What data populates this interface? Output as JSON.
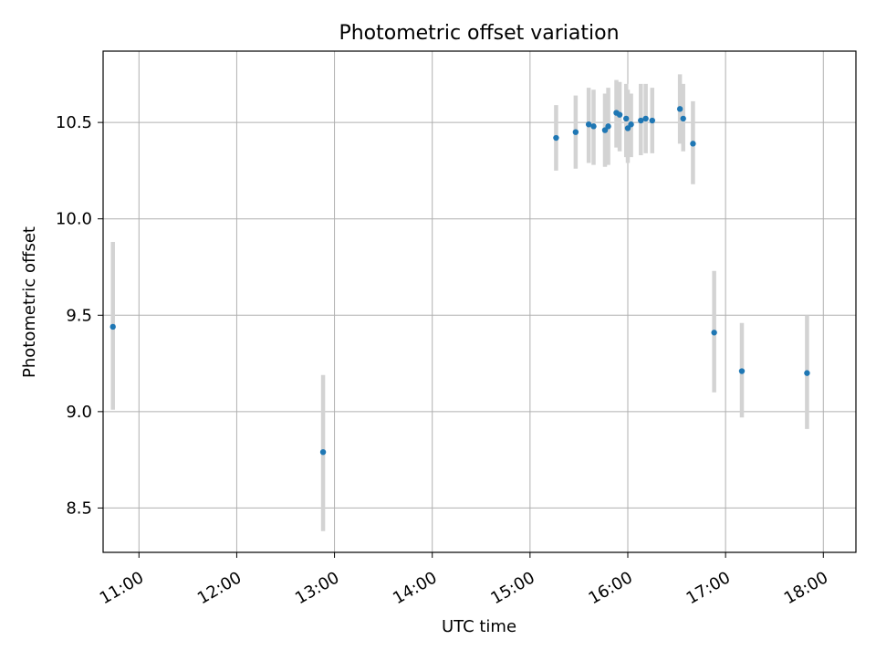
{
  "chart_data": {
    "type": "scatter",
    "title": "Photometric offset variation",
    "xlabel": "UTC time",
    "ylabel": "Photometric offset",
    "x_tick_labels": [
      "11:00",
      "12:00",
      "13:00",
      "14:00",
      "15:00",
      "16:00",
      "17:00",
      "18:00"
    ],
    "x_ticks": [
      "11:00",
      "12:00",
      "13:00",
      "14:00",
      "15:00",
      "16:00",
      "17:00",
      "18:00"
    ],
    "y_tick_labels": [
      "8.5",
      "9.0",
      "9.5",
      "10.0",
      "10.5"
    ],
    "y_ticks": [
      8.5,
      9.0,
      9.5,
      10.0,
      10.5
    ],
    "xlim": [
      "10:38",
      "18:20"
    ],
    "ylim": [
      8.27,
      10.87
    ],
    "grid": true,
    "marker_color": "#1f77b4",
    "errorbar_color": "#d3d3d3",
    "points": [
      {
        "x": "10:44",
        "y": 9.44,
        "y_low": 9.01,
        "y_high": 9.88
      },
      {
        "x": "12:53",
        "y": 8.79,
        "y_low": 8.38,
        "y_high": 9.19
      },
      {
        "x": "15:16",
        "y": 10.42,
        "y_low": 10.25,
        "y_high": 10.59
      },
      {
        "x": "15:28",
        "y": 10.45,
        "y_low": 10.26,
        "y_high": 10.64
      },
      {
        "x": "15:36",
        "y": 10.49,
        "y_low": 10.29,
        "y_high": 10.68
      },
      {
        "x": "15:39",
        "y": 10.48,
        "y_low": 10.28,
        "y_high": 10.67
      },
      {
        "x": "15:46",
        "y": 10.46,
        "y_low": 10.27,
        "y_high": 10.65
      },
      {
        "x": "15:48",
        "y": 10.48,
        "y_low": 10.28,
        "y_high": 10.68
      },
      {
        "x": "15:53",
        "y": 10.55,
        "y_low": 10.37,
        "y_high": 10.72
      },
      {
        "x": "15:55",
        "y": 10.54,
        "y_low": 10.35,
        "y_high": 10.71
      },
      {
        "x": "15:59",
        "y": 10.52,
        "y_low": 10.32,
        "y_high": 10.7
      },
      {
        "x": "16:00",
        "y": 10.47,
        "y_low": 10.29,
        "y_high": 10.67
      },
      {
        "x": "16:02",
        "y": 10.49,
        "y_low": 10.32,
        "y_high": 10.65
      },
      {
        "x": "16:08",
        "y": 10.51,
        "y_low": 10.33,
        "y_high": 10.7
      },
      {
        "x": "16:11",
        "y": 10.52,
        "y_low": 10.34,
        "y_high": 10.7
      },
      {
        "x": "16:15",
        "y": 10.51,
        "y_low": 10.34,
        "y_high": 10.68
      },
      {
        "x": "16:32",
        "y": 10.57,
        "y_low": 10.39,
        "y_high": 10.75
      },
      {
        "x": "16:34",
        "y": 10.52,
        "y_low": 10.35,
        "y_high": 10.7
      },
      {
        "x": "16:40",
        "y": 10.39,
        "y_low": 10.18,
        "y_high": 10.61
      },
      {
        "x": "16:53",
        "y": 9.41,
        "y_low": 9.1,
        "y_high": 9.73
      },
      {
        "x": "17:10",
        "y": 9.21,
        "y_low": 8.97,
        "y_high": 9.46
      },
      {
        "x": "17:50",
        "y": 9.2,
        "y_low": 8.91,
        "y_high": 9.5
      }
    ]
  }
}
